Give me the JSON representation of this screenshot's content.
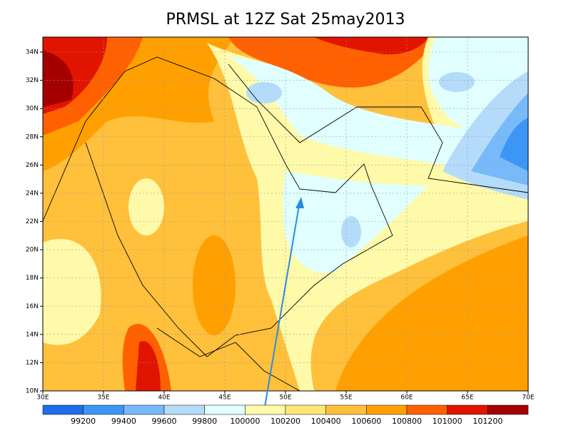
{
  "title": "PRMSL at 12Z Sat 25may2013",
  "lat_labels": [
    "10N",
    "12N",
    "14N",
    "16N",
    "18N",
    "20N",
    "22N",
    "24N",
    "26N",
    "28N",
    "30N",
    "32N",
    "34N"
  ],
  "lon_labels": [
    "30E",
    "35E",
    "40E",
    "45E",
    "50E",
    "55E",
    "60E",
    "65E",
    "70E"
  ],
  "colorbar": {
    "labels": [
      "99200",
      "99400",
      "99600",
      "99800",
      "100000",
      "100200",
      "100400",
      "100600",
      "100800",
      "101000",
      "101200"
    ],
    "colors": [
      "#1e6eeb",
      "#3c96f5",
      "#78b9fa",
      "#b4dcfa",
      "#e1ffff",
      "#fffaaa",
      "#ffe878",
      "#ffc03c",
      "#ffa000",
      "#ff6000",
      "#e11400",
      "#a50000"
    ]
  }
}
